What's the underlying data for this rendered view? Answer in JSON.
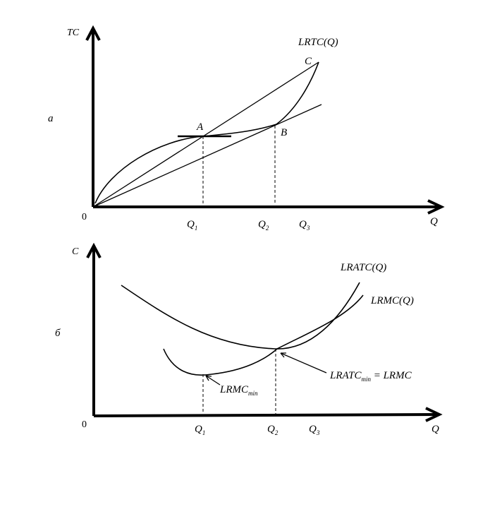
{
  "top": {
    "panel_letter": "а",
    "y_axis_label": "TC",
    "x_axis_label": "Q",
    "origin": "0",
    "curve_label": "LRTC(Q)",
    "points": {
      "a": "A",
      "b": "B",
      "c": "C"
    },
    "q1": {
      "base": "Q",
      "sub": "1"
    },
    "q2": {
      "base": "Q",
      "sub": "2"
    },
    "q3": {
      "base": "Q",
      "sub": "3"
    }
  },
  "bottom": {
    "panel_letter": "б",
    "y_axis_label": "C",
    "x_axis_label": "Q",
    "origin": "0",
    "atc_label": "LRATC(Q)",
    "mc_label": "LRMC(Q)",
    "mc_min": {
      "base": "LRMC",
      "sub": "min"
    },
    "atc_min_eq": {
      "base": "LRATC",
      "sub": "min",
      "rest": " = LRMC"
    },
    "q1": {
      "base": "Q",
      "sub": "1"
    },
    "q2": {
      "base": "Q",
      "sub": "2"
    },
    "q3": {
      "base": "Q",
      "sub": "3"
    }
  }
}
